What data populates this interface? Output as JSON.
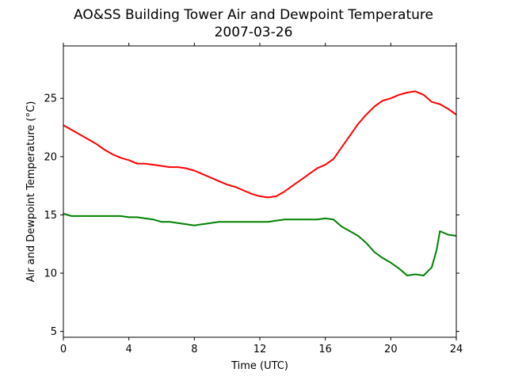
{
  "chart_data": {
    "type": "line",
    "title": "AO&SS Building Tower Air and Dewpoint Temperature",
    "subtitle": "2007-03-26",
    "xlabel": "Time (UTC)",
    "ylabel": "Air and Dewpoint Temperature (°C)",
    "xlim": [
      0,
      24
    ],
    "ylim": [
      4.5,
      29.5
    ],
    "xticks": [
      0,
      4,
      8,
      12,
      16,
      20,
      24
    ],
    "yticks": [
      5,
      10,
      15,
      20,
      25
    ],
    "grid": false,
    "series": [
      {
        "color": "#ff0000",
        "x": [
          0,
          0.5,
          1,
          1.5,
          2,
          2.5,
          3,
          3.5,
          4,
          4.5,
          5,
          5.5,
          6,
          6.5,
          7,
          7.5,
          8,
          8.5,
          9,
          9.5,
          10,
          10.5,
          11,
          11.5,
          12,
          12.5,
          13,
          13.5,
          14,
          14.5,
          15,
          15.5,
          16,
          16.5,
          17,
          17.5,
          18,
          18.5,
          19,
          19.5,
          20,
          20.5,
          21,
          21.5,
          22,
          22.5,
          23,
          23.5,
          24
        ],
        "y": [
          22.7,
          22.3,
          21.9,
          21.5,
          21.1,
          20.6,
          20.2,
          19.9,
          19.7,
          19.4,
          19.4,
          19.3,
          19.2,
          19.1,
          19.1,
          19.0,
          18.8,
          18.5,
          18.2,
          17.9,
          17.6,
          17.4,
          17.1,
          16.8,
          16.6,
          16.5,
          16.6,
          17.0,
          17.5,
          18.0,
          18.5,
          19.0,
          19.3,
          19.8,
          20.8,
          21.8,
          22.8,
          23.6,
          24.3,
          24.8,
          25.0,
          25.3,
          25.5,
          25.6,
          25.3,
          24.7,
          24.5,
          24.1,
          23.6
        ]
      },
      {
        "color": "#008000",
        "x": [
          0,
          0.5,
          1,
          1.5,
          2,
          2.5,
          3,
          3.5,
          4,
          4.5,
          5,
          5.5,
          6,
          6.5,
          7,
          7.5,
          8,
          8.5,
          9,
          9.5,
          10,
          10.5,
          11,
          11.5,
          12,
          12.5,
          13,
          13.5,
          14,
          14.5,
          15,
          15.5,
          16,
          16.5,
          17,
          17.5,
          18,
          18.5,
          19,
          19.5,
          20,
          20.5,
          21,
          21.5,
          22,
          22.5,
          22.8,
          23,
          23.5,
          24
        ],
        "y": [
          15.1,
          14.9,
          14.9,
          14.9,
          14.9,
          14.9,
          14.9,
          14.9,
          14.8,
          14.8,
          14.7,
          14.6,
          14.4,
          14.4,
          14.3,
          14.2,
          14.1,
          14.2,
          14.3,
          14.4,
          14.4,
          14.4,
          14.4,
          14.4,
          14.4,
          14.4,
          14.5,
          14.6,
          14.6,
          14.6,
          14.6,
          14.6,
          14.7,
          14.6,
          14.0,
          13.6,
          13.2,
          12.6,
          11.8,
          11.3,
          10.9,
          10.4,
          9.8,
          9.9,
          9.8,
          10.5,
          12.0,
          13.6,
          13.3,
          13.2
        ]
      }
    ]
  }
}
